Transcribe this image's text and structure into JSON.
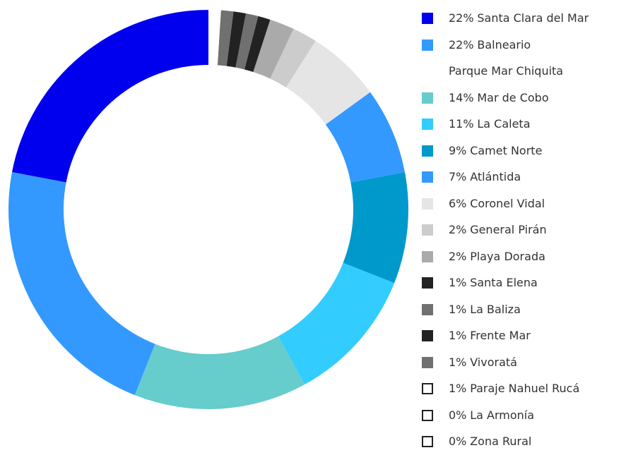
{
  "chart_data": {
    "type": "donut",
    "categories": [
      "Santa Clara del Mar",
      "Balneario\nParque Mar Chiquita",
      "Mar de Cobo",
      "La Caleta",
      "Camet Norte",
      "Atlántida",
      "Coronel Vidal",
      "General Pirán",
      "Playa Dorada",
      "Santa Elena",
      "La Baliza",
      "Frente Mar",
      "Vivoratá",
      "Paraje Nahuel Rucá",
      "La Armonía",
      "Zona Rural"
    ],
    "values": [
      22,
      22,
      14,
      11,
      9,
      7,
      6,
      2,
      2,
      1,
      1,
      1,
      1,
      1,
      0,
      0
    ],
    "value_labels": [
      "22%",
      "22%",
      "14%",
      "11%",
      "9%",
      "7%",
      "6%",
      "2%",
      "2%",
      "1%",
      "1%",
      "1%",
      "1%",
      "1%",
      "0%",
      "0%"
    ],
    "colors": [
      "#0000ee",
      "#3399ff",
      "#66cccc",
      "#33ccff",
      "#0099cc",
      "#3399ff",
      "#e5e5e5",
      "#cccccc",
      "#aaaaaa",
      "#222222",
      "#707070",
      "#222222",
      "#707070",
      "#ffffff",
      "#ffffff",
      "#ffffff"
    ],
    "legend": "right"
  }
}
